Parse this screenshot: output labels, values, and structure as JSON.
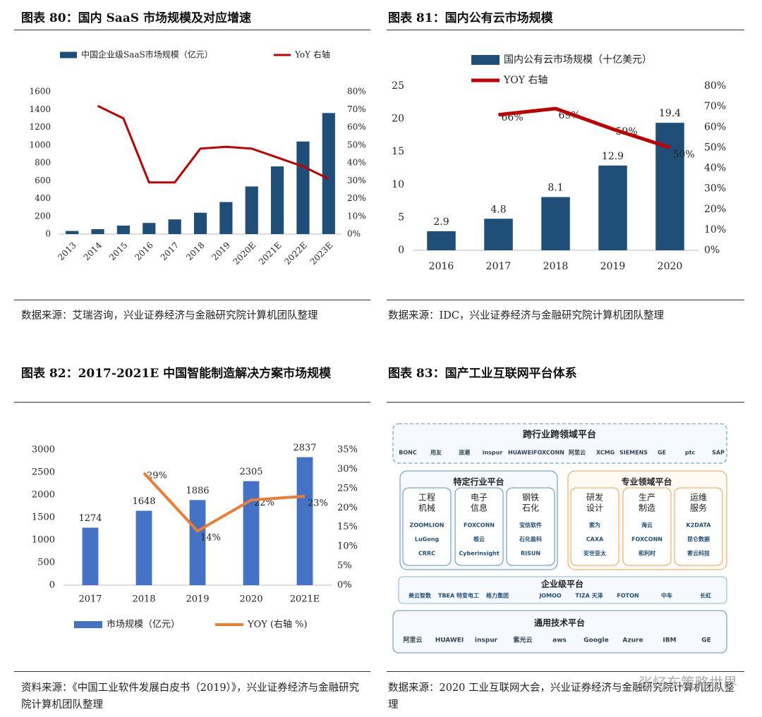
{
  "chart_data": [
    {
      "type": "combo",
      "title": "图表 80：国内 SaaS 市场规模及对应增速",
      "source": "数据来源：艾瑞咨询，兴业证券经济与金融研究院计算机团队整理",
      "categories": [
        "2013",
        "2014",
        "2015",
        "2016",
        "2017",
        "2018",
        "2019",
        "2020E",
        "2021E",
        "2022E",
        "2023E"
      ],
      "series": [
        {
          "name": "中国企业级SaaS市场规模（亿元）",
          "type": "bar",
          "color": "#1f4e79",
          "values": [
            35,
            55,
            95,
            125,
            165,
            240,
            360,
            535,
            760,
            1040,
            1360
          ]
        },
        {
          "name": "YoY 右轴",
          "type": "line",
          "axis": "y2",
          "color": "#c00000",
          "values": [
            null,
            72,
            65,
            29,
            29,
            48,
            49,
            48,
            43,
            38,
            31
          ]
        }
      ],
      "ylim": [
        0,
        1600
      ],
      "yticks": [
        0,
        200,
        400,
        600,
        800,
        1000,
        1200,
        1400,
        1600
      ],
      "y2lim": [
        0,
        80
      ],
      "y2ticks": [
        {
          "value": 0,
          "label": "0%"
        },
        {
          "value": 10,
          "label": "10%"
        },
        {
          "value": 20,
          "label": "20%"
        },
        {
          "value": 30,
          "label": "30%"
        },
        {
          "value": 40,
          "label": "40%"
        },
        {
          "value": 50,
          "label": "50%"
        },
        {
          "value": 60,
          "label": "60%"
        },
        {
          "value": 70,
          "label": "70%"
        },
        {
          "value": 80,
          "label": "80%"
        }
      ],
      "data_labels": false
    },
    {
      "type": "combo",
      "title": "图表 81：国内公有云市场规模",
      "source": "数据来源：IDC，兴业证券经济与金融研究院计算机团队整理",
      "categories": [
        "2016",
        "2017",
        "2018",
        "2019",
        "2020"
      ],
      "series": [
        {
          "name": "国内公有云市场规模（十亿美元）",
          "type": "bar",
          "color": "#1f4e79",
          "values": [
            2.9,
            4.8,
            8.1,
            12.9,
            19.4
          ]
        },
        {
          "name": "YOY 右轴",
          "type": "line",
          "axis": "y2",
          "color": "#c00000",
          "values": [
            null,
            66,
            69,
            59,
            50
          ],
          "value_labels": [
            null,
            "66%",
            "69%",
            "59%",
            "50%"
          ]
        }
      ],
      "ylim": [
        0,
        25
      ],
      "yticks": [
        0,
        5,
        10,
        15,
        20,
        25
      ],
      "y2lim": [
        0,
        80
      ],
      "y2ticks": [
        {
          "value": 0,
          "label": "0%"
        },
        {
          "value": 10,
          "label": "10%"
        },
        {
          "value": 20,
          "label": "20%"
        },
        {
          "value": 30,
          "label": "30%"
        },
        {
          "value": 40,
          "label": "40%"
        },
        {
          "value": 50,
          "label": "50%"
        },
        {
          "value": 60,
          "label": "60%"
        },
        {
          "value": 70,
          "label": "70%"
        },
        {
          "value": 80,
          "label": "80%"
        }
      ],
      "data_labels": true
    },
    {
      "type": "combo",
      "title": "图表 82：2017-2021E 中国智能制造解决方案市场规模",
      "source": "资料来源：《中国工业软件发展白皮书（2019）》，兴业证券经济与金融研究院计算机团队整理",
      "categories": [
        "2017",
        "2018",
        "2019",
        "2020",
        "2021E"
      ],
      "series": [
        {
          "name": "市场规模（亿元）",
          "type": "bar",
          "color": "#4472c4",
          "values": [
            1274,
            1648,
            1886,
            2305,
            2837
          ]
        },
        {
          "name": "YOY (右轴 %)",
          "type": "line",
          "axis": "y2",
          "color": "#ed7d31",
          "values": [
            null,
            29,
            14,
            22,
            23
          ],
          "value_labels": [
            null,
            "29%",
            "14%",
            "22%",
            "23%"
          ]
        }
      ],
      "ylim": [
        0,
        3000
      ],
      "yticks": [
        0,
        500,
        1000,
        1500,
        2000,
        2500,
        3000
      ],
      "y2lim": [
        0,
        35
      ],
      "y2ticks": [
        {
          "value": 0,
          "label": "0%"
        },
        {
          "value": 5,
          "label": "5%"
        },
        {
          "value": 10,
          "label": "10%"
        },
        {
          "value": 15,
          "label": "15%"
        },
        {
          "value": 20,
          "label": "20%"
        },
        {
          "value": 25,
          "label": "25%"
        },
        {
          "value": 30,
          "label": "30%"
        },
        {
          "value": 35,
          "label": "35%"
        }
      ],
      "data_labels": true
    }
  ],
  "diagram": {
    "title": "图表 83：国产工业互联网平台体系",
    "source": "数据来源：2020 工业互联网大会，兴业证券经济与金融研究院计算机团队整理",
    "cross_industry": {
      "title": "跨行业跨领域平台",
      "logos": [
        "BONC",
        "用友",
        "浪潮",
        "inspur",
        "HUAWEI",
        "FOXCONN",
        "阿里云",
        "XCMG",
        "SIEMENS",
        "GE",
        "ptc",
        "SAP"
      ]
    },
    "industry": {
      "title": "特定行业平台",
      "columns": [
        {
          "label": [
            "工程",
            "机械"
          ],
          "logos": [
            "ZOOMLION",
            "LuGong",
            "CRRC"
          ]
        },
        {
          "label": [
            "电子",
            "信息"
          ],
          "logos": [
            "FOXCONN",
            "根云",
            "Cyberinsight"
          ]
        },
        {
          "label": [
            "钢铁",
            "石化"
          ],
          "logos": [
            "宝信软件",
            "石化盈科",
            "RISUN"
          ]
        }
      ]
    },
    "domain": {
      "title": "专业领域平台",
      "columns": [
        {
          "label": [
            "研发",
            "设计"
          ],
          "logos": [
            "索为",
            "CAXA",
            "安世亚太"
          ]
        },
        {
          "label": [
            "生产",
            "制造"
          ],
          "logos": [
            "海云",
            "FOXCONN",
            "和利时"
          ]
        },
        {
          "label": [
            "运维",
            "服务"
          ],
          "logos": [
            "K2DATA",
            "昆仑数据",
            "寄云科技"
          ]
        }
      ]
    },
    "enterprise": {
      "title": "企业级平台",
      "logos": [
        "美云智数",
        "TBEA 特变电工",
        "格力集团",
        "JOMOO",
        "TIZA 天泽",
        "FOTON",
        "中车",
        "长虹"
      ]
    },
    "general": {
      "title": "通用技术平台",
      "logos": [
        "阿里云",
        "HUAWEI",
        "inspur",
        "紫光云",
        "aws",
        "Google",
        "Azure",
        "IBM",
        "GE"
      ]
    }
  },
  "watermark": "张忆东策略世界"
}
